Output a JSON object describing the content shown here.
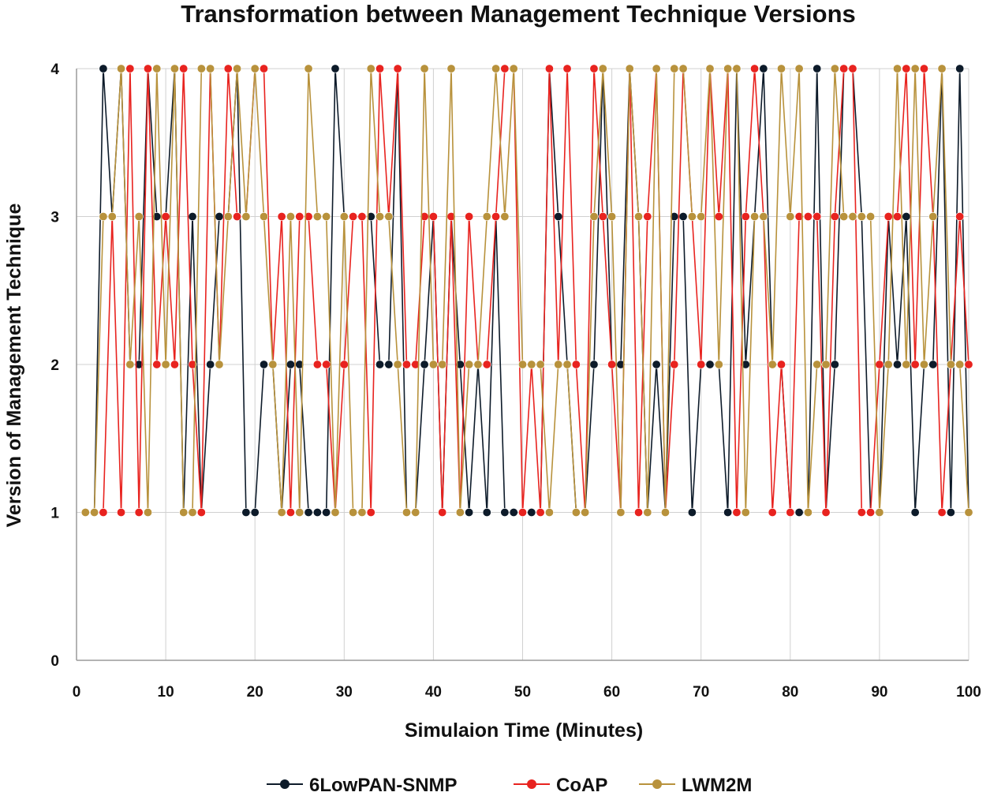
{
  "chart_data": {
    "type": "line",
    "title": "Transformation between Management Technique Versions",
    "xlabel": "Simulaion Time (Minutes)",
    "ylabel": "Version of Management Technique",
    "xlim": [
      0,
      100
    ],
    "ylim": [
      0,
      4
    ],
    "x_ticks": [
      0,
      10,
      20,
      30,
      40,
      50,
      60,
      70,
      80,
      90,
      100
    ],
    "y_ticks": [
      0,
      1,
      2,
      3,
      4
    ],
    "grid": true,
    "legend_position": "bottom",
    "series": [
      {
        "name": "6LowPAN-SNMP",
        "color": "#0d1b2a",
        "x": [
          1,
          2,
          3,
          4,
          5,
          6,
          7,
          8,
          9,
          10,
          11,
          12,
          13,
          14,
          15,
          16,
          17,
          18,
          19,
          20,
          21,
          22,
          23,
          24,
          25,
          26,
          27,
          28,
          29,
          30,
          31,
          32,
          33,
          34,
          35,
          36,
          37,
          38,
          39,
          40,
          41,
          42,
          43,
          44,
          45,
          46,
          47,
          48,
          49,
          50,
          51,
          52,
          53,
          54,
          55,
          56,
          57,
          58,
          59,
          60,
          61,
          62,
          63,
          64,
          65,
          66,
          67,
          68,
          69,
          70,
          71,
          72,
          73,
          74,
          75,
          76,
          77,
          78,
          79,
          80,
          81,
          82,
          83,
          84,
          85,
          86,
          87,
          88,
          89,
          90,
          91,
          92,
          93,
          94,
          95,
          96,
          97,
          98,
          99,
          100
        ],
        "values": [
          1,
          1,
          4,
          3,
          4,
          2,
          2,
          4,
          3,
          3,
          4,
          1,
          3,
          1,
          2,
          3,
          3,
          4,
          1,
          1,
          2,
          2,
          1,
          2,
          2,
          1,
          1,
          1,
          4,
          3,
          3,
          3,
          3,
          2,
          2,
          4,
          1,
          1,
          2,
          3,
          1,
          3,
          2,
          1,
          2,
          1,
          3,
          1,
          1,
          1,
          1,
          1,
          4,
          3,
          2,
          1,
          1,
          2,
          4,
          2,
          2,
          4,
          3,
          1,
          2,
          1,
          3,
          3,
          1,
          2,
          2,
          2,
          1,
          4,
          2,
          3,
          4,
          2,
          2,
          1,
          1,
          1,
          4,
          1,
          2,
          4,
          4,
          3,
          1,
          1,
          3,
          2,
          3,
          1,
          2,
          2,
          4,
          1,
          4,
          1
        ]
      },
      {
        "name": "CoAP",
        "color": "#e8231f",
        "x": [
          1,
          2,
          3,
          4,
          5,
          6,
          7,
          8,
          9,
          10,
          11,
          12,
          13,
          14,
          15,
          16,
          17,
          18,
          19,
          20,
          21,
          22,
          23,
          24,
          25,
          26,
          27,
          28,
          29,
          30,
          31,
          32,
          33,
          34,
          35,
          36,
          37,
          38,
          39,
          40,
          41,
          42,
          43,
          44,
          45,
          46,
          47,
          48,
          49,
          50,
          51,
          52,
          53,
          54,
          55,
          56,
          57,
          58,
          59,
          60,
          61,
          62,
          63,
          64,
          65,
          66,
          67,
          68,
          69,
          70,
          71,
          72,
          73,
          74,
          75,
          76,
          77,
          78,
          79,
          80,
          81,
          82,
          83,
          84,
          85,
          86,
          87,
          88,
          89,
          90,
          91,
          92,
          93,
          94,
          95,
          96,
          97,
          98,
          99,
          100
        ],
        "values": [
          1,
          1,
          1,
          3,
          1,
          4,
          1,
          4,
          2,
          3,
          2,
          4,
          2,
          1,
          4,
          2,
          4,
          3,
          3,
          4,
          4,
          2,
          3,
          1,
          3,
          3,
          2,
          2,
          1,
          2,
          3,
          3,
          1,
          4,
          3,
          4,
          2,
          2,
          3,
          3,
          1,
          3,
          1,
          3,
          2,
          2,
          3,
          4,
          4,
          1,
          2,
          1,
          4,
          2,
          4,
          2,
          1,
          4,
          3,
          2,
          1,
          4,
          1,
          3,
          4,
          1,
          2,
          4,
          3,
          2,
          4,
          3,
          4,
          1,
          3,
          4,
          3,
          1,
          2,
          1,
          3,
          3,
          3,
          1,
          3,
          4,
          4,
          1,
          1,
          2,
          3,
          3,
          4,
          2,
          4,
          3,
          1,
          2,
          3,
          2
        ]
      },
      {
        "name": "LWM2M",
        "color": "#b8923c",
        "x": [
          1,
          2,
          3,
          4,
          5,
          6,
          7,
          8,
          9,
          10,
          11,
          12,
          13,
          14,
          15,
          16,
          17,
          18,
          19,
          20,
          21,
          22,
          23,
          24,
          25,
          26,
          27,
          28,
          29,
          30,
          31,
          32,
          33,
          34,
          35,
          36,
          37,
          38,
          39,
          40,
          41,
          42,
          43,
          44,
          45,
          46,
          47,
          48,
          49,
          50,
          51,
          52,
          53,
          54,
          55,
          56,
          57,
          58,
          59,
          60,
          61,
          62,
          63,
          64,
          65,
          66,
          67,
          68,
          69,
          70,
          71,
          72,
          73,
          74,
          75,
          76,
          77,
          78,
          79,
          80,
          81,
          82,
          83,
          84,
          85,
          86,
          87,
          88,
          89,
          90,
          91,
          92,
          93,
          94,
          95,
          96,
          97,
          98,
          99,
          100
        ],
        "values": [
          1,
          1,
          3,
          3,
          4,
          2,
          3,
          1,
          4,
          2,
          4,
          1,
          1,
          4,
          4,
          2,
          3,
          4,
          3,
          4,
          3,
          2,
          1,
          3,
          1,
          4,
          3,
          3,
          1,
          3,
          1,
          1,
          4,
          3,
          3,
          2,
          1,
          1,
          4,
          2,
          2,
          4,
          1,
          2,
          2,
          3,
          4,
          3,
          4,
          2,
          2,
          2,
          1,
          2,
          2,
          1,
          1,
          3,
          4,
          3,
          1,
          4,
          3,
          1,
          4,
          1,
          4,
          4,
          3,
          3,
          4,
          2,
          4,
          4,
          1,
          3,
          3,
          2,
          4,
          3,
          4,
          1,
          2,
          2,
          4,
          3,
          3,
          3,
          3,
          1,
          2,
          4,
          2,
          4,
          2,
          3,
          4,
          2,
          2,
          1
        ]
      }
    ]
  }
}
